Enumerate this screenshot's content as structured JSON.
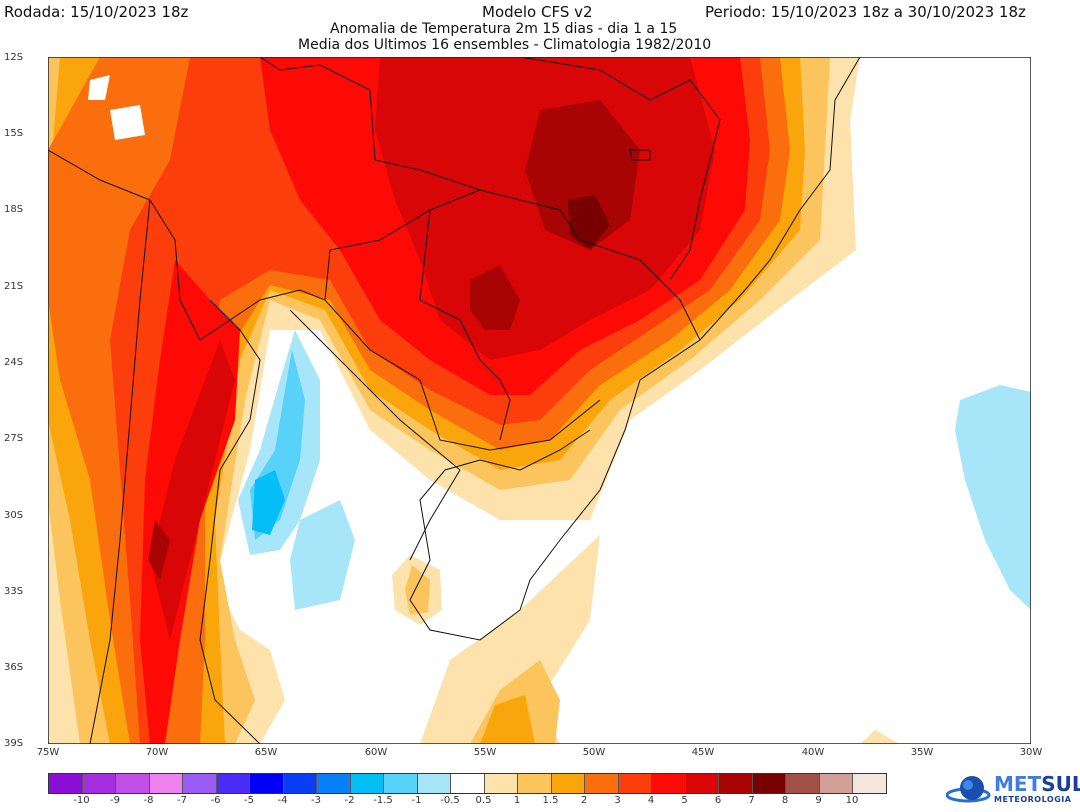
{
  "header": {
    "run": "Rodada: 15/10/2023 18z",
    "model": "Modelo CFS v2",
    "period": "Periodo: 15/10/2023 18z a 30/10/2023 18z",
    "subtitle1": "Anomalia de Temperatura 2m 15 dias - dia 1 a 15",
    "subtitle2": "Media dos Ultimos 16 ensembles - Climatologia 1982/2010"
  },
  "axes": {
    "lat": [
      "12S",
      "15S",
      "18S",
      "21S",
      "24S",
      "27S",
      "30S",
      "33S",
      "36S",
      "39S"
    ],
    "lon": [
      "75W",
      "70W",
      "65W",
      "60W",
      "55W",
      "50W",
      "45W",
      "40W",
      "35W",
      "30W"
    ]
  },
  "colorbar": {
    "colors": [
      "#8a0ed6",
      "#a52ee0",
      "#c050e6",
      "#ee82ee",
      "#9a5cf4",
      "#4a2cf6",
      "#0000f4",
      "#0a3ef6",
      "#0a80f8",
      "#04bef8",
      "#58d2f8",
      "#a6e6f8",
      "#ffffff",
      "#fde2ac",
      "#fbc45c",
      "#faa50c",
      "#fb6e0e",
      "#fc3e0c",
      "#fd0a06",
      "#d80606",
      "#a80404",
      "#780000",
      "#a05048",
      "#d0a098",
      "#f4e6dc"
    ],
    "labels": [
      "-10",
      "-9",
      "-8",
      "-7",
      "-6",
      "-5",
      "-4",
      "-3",
      "-2",
      "-1.5",
      "-1",
      "-0.5",
      "0.5",
      "1",
      "1.5",
      "2",
      "3",
      "4",
      "5",
      "6",
      "7",
      "8",
      "9",
      "10"
    ]
  },
  "logo": {
    "name_a": "MET",
    "name_b": "SUL",
    "tagline": "METEOROLOGIA"
  }
}
